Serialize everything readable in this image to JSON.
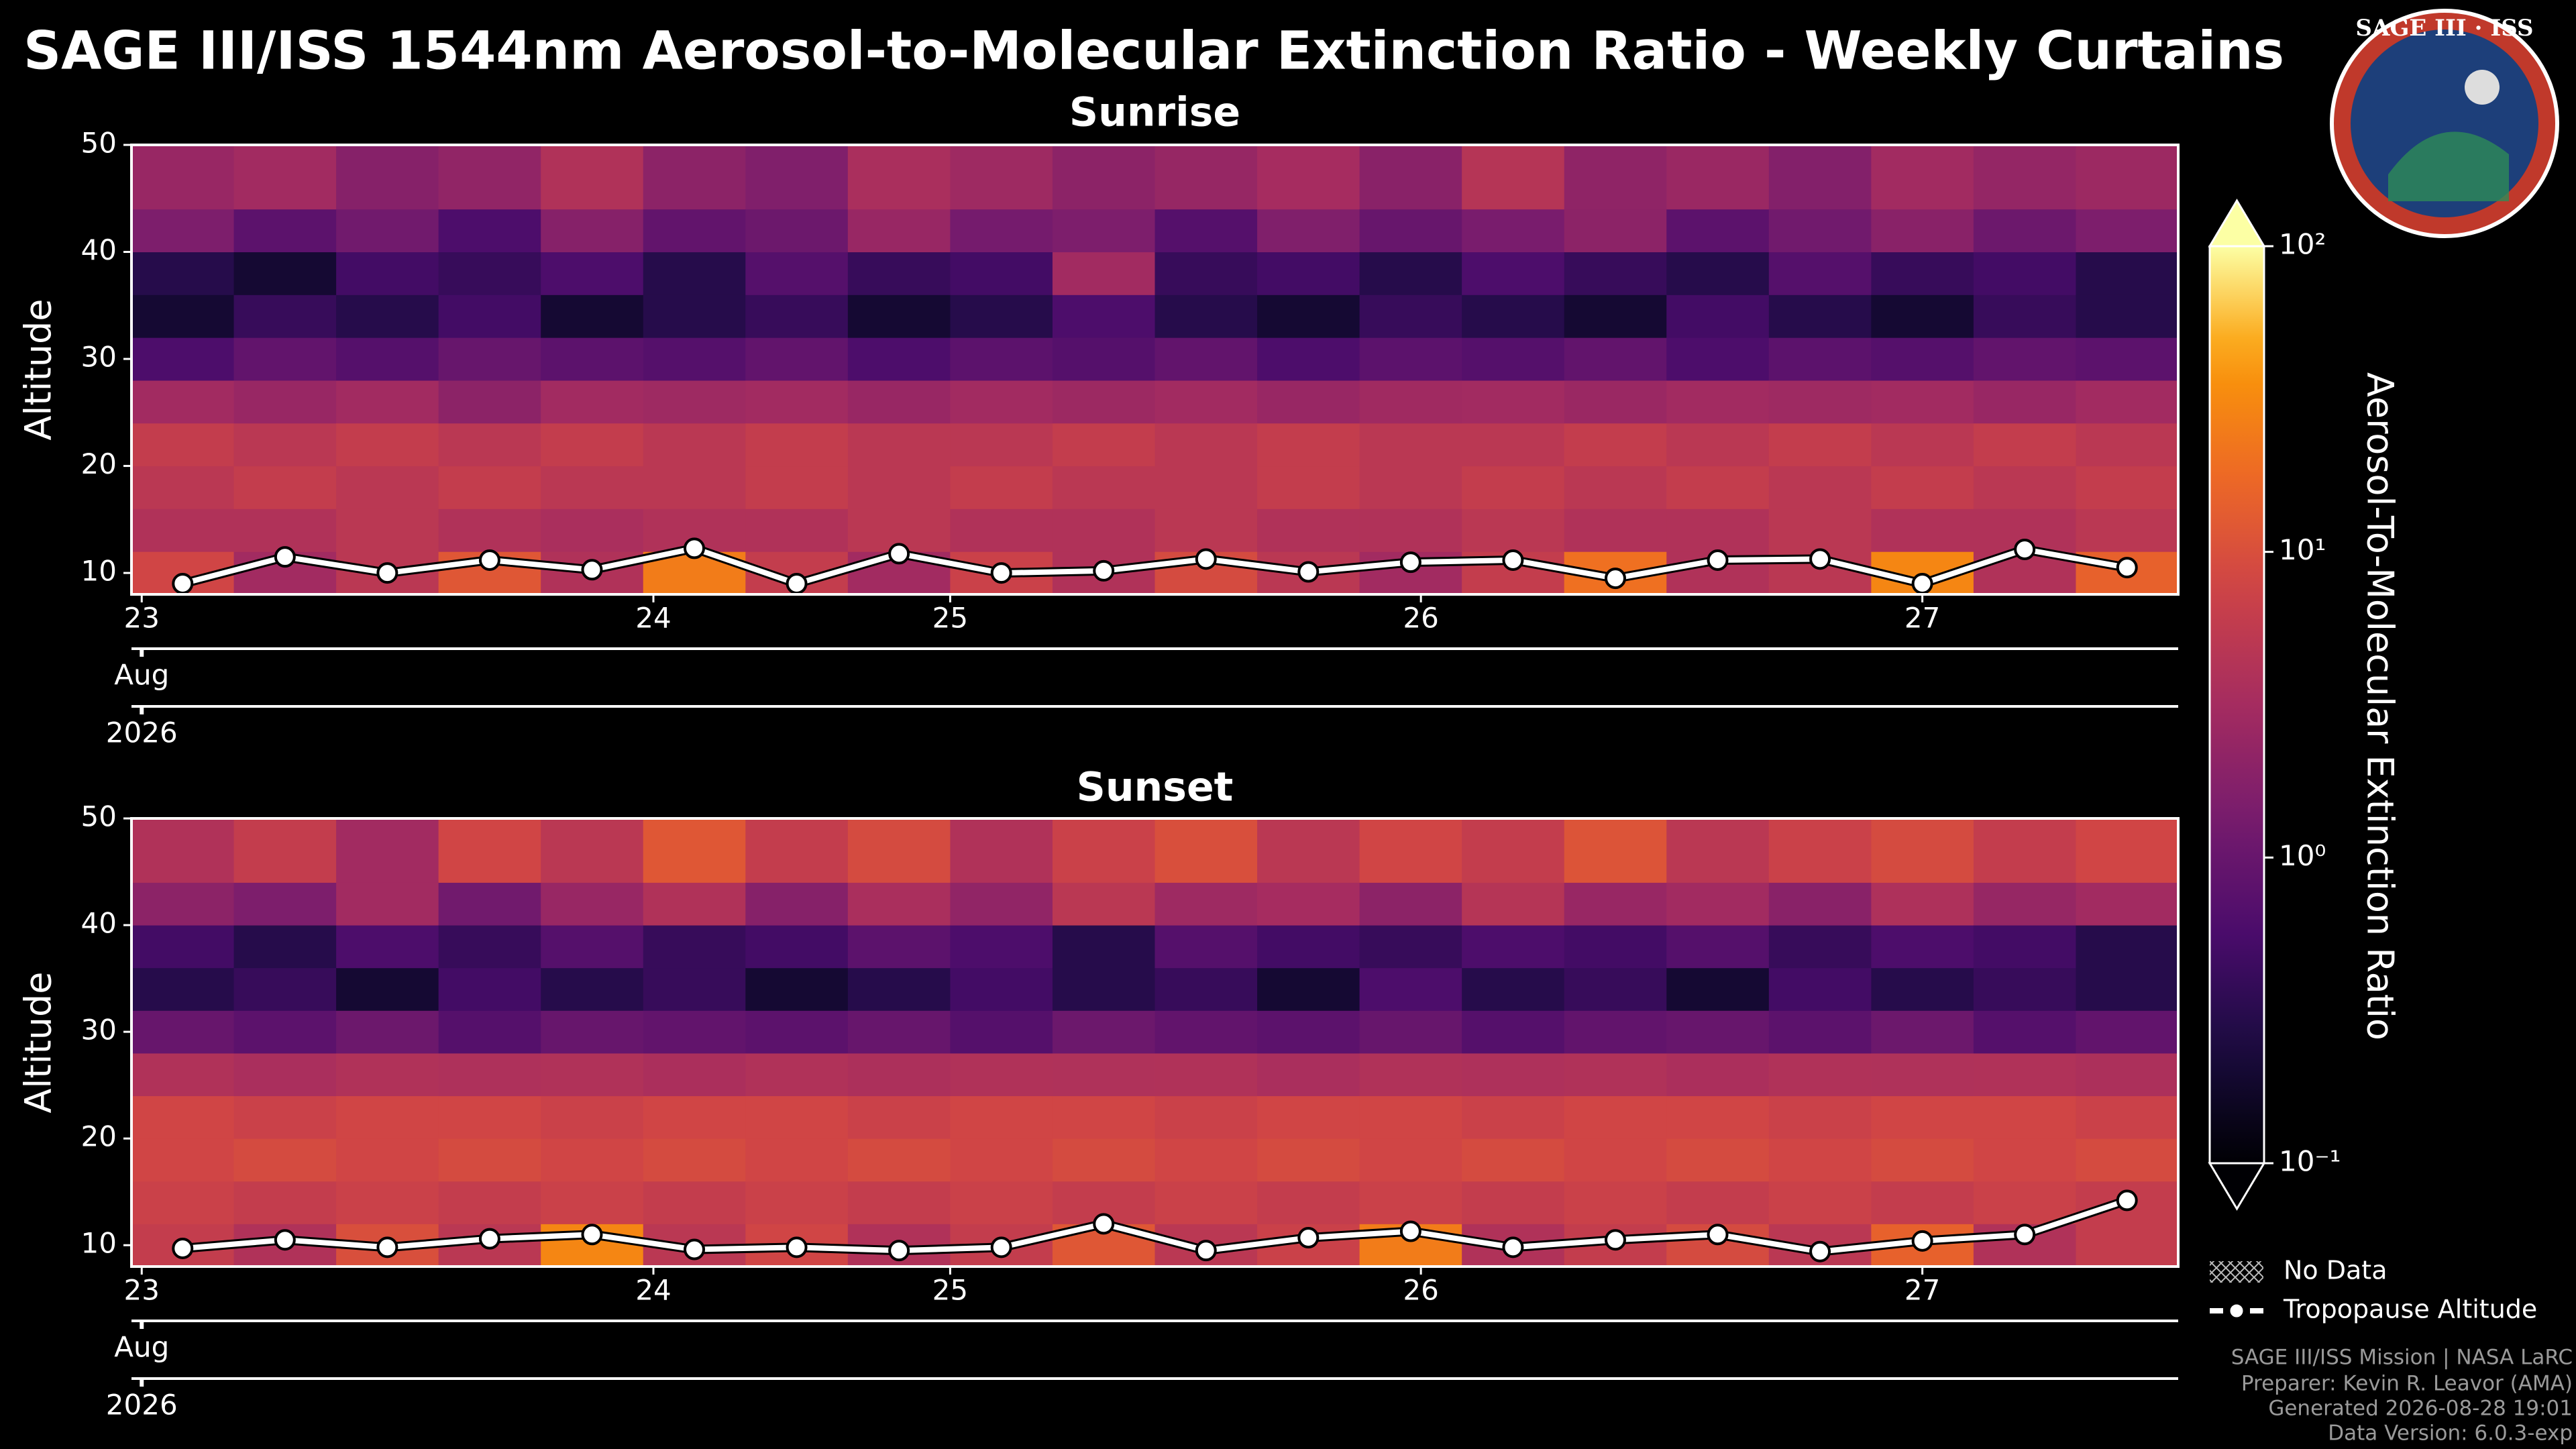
{
  "title": "SAGE III/ISS 1544nm Aerosol-to-Molecular Extinction Ratio - Weekly Curtains",
  "logo": {
    "text": "SAGE III · ISS"
  },
  "chart_data": [
    {
      "type": "heatmap",
      "title": "Sunrise",
      "ylabel": "Altitude",
      "xbins": [
        0,
        1,
        2,
        3,
        4,
        5,
        6,
        7,
        8,
        9,
        10,
        11,
        12,
        13,
        14,
        15,
        16,
        17,
        18,
        19,
        20
      ],
      "ybins": [
        8,
        12,
        16,
        20,
        24,
        28,
        32,
        36,
        40,
        44,
        50
      ],
      "values": [
        [
          8,
          4,
          5,
          6,
          3,
          0.6,
          0.2,
          0.3,
          1.5,
          2.5
        ],
        [
          3,
          4,
          6,
          5,
          2.5,
          0.9,
          0.4,
          0.2,
          0.8,
          3
        ],
        [
          5,
          5,
          5,
          6,
          3,
          0.7,
          0.3,
          0.5,
          1.2,
          1.8
        ],
        [
          12,
          4,
          6,
          5,
          2,
          1,
          0.5,
          0.4,
          0.6,
          2.2
        ],
        [
          4,
          3.5,
          5,
          6,
          3,
          0.8,
          0.2,
          0.6,
          1.8,
          4
        ],
        [
          25,
          4,
          5,
          5,
          2.8,
          0.7,
          0.3,
          0.3,
          0.9,
          2
        ],
        [
          6,
          4,
          6,
          6,
          3,
          0.9,
          0.4,
          0.7,
          1.1,
          1.6
        ],
        [
          3,
          5,
          5,
          5,
          2.5,
          0.6,
          0.2,
          0.4,
          2.5,
          3.5
        ],
        [
          7,
          4,
          6,
          5,
          3,
          0.8,
          0.3,
          0.5,
          1.3,
          2.8
        ],
        [
          4,
          4,
          5,
          6,
          2.7,
          0.7,
          0.6,
          3,
          1.5,
          2
        ],
        [
          9,
          5,
          5,
          5,
          3,
          0.9,
          0.3,
          0.4,
          0.7,
          2.4
        ],
        [
          5,
          4,
          6,
          6,
          2.5,
          0.6,
          0.2,
          0.5,
          1.6,
          3.2
        ],
        [
          3,
          4,
          5,
          5,
          2.9,
          0.8,
          0.4,
          0.3,
          1,
          1.9
        ],
        [
          6,
          5,
          6,
          5,
          3,
          0.7,
          0.3,
          0.6,
          1.4,
          4.5
        ],
        [
          20,
          4,
          5,
          6,
          2.6,
          0.9,
          0.2,
          0.4,
          2,
          2.1
        ],
        [
          4,
          4,
          6,
          5,
          3,
          0.6,
          0.5,
          0.3,
          0.8,
          2.6
        ],
        [
          5,
          5,
          5,
          6,
          2.8,
          0.8,
          0.3,
          0.7,
          1.2,
          1.7
        ],
        [
          30,
          4,
          6,
          5,
          3,
          0.7,
          0.2,
          0.4,
          1.9,
          3
        ],
        [
          4,
          4,
          5,
          6,
          2.5,
          0.9,
          0.4,
          0.5,
          1.1,
          2.3
        ],
        [
          15,
          5,
          6,
          5,
          3,
          0.8,
          0.3,
          0.3,
          1.5,
          2.7
        ]
      ],
      "tropopause": [
        9,
        11.5,
        10,
        11.2,
        10.3,
        12.3,
        9,
        11.8,
        10,
        10.2,
        11.3,
        10.1,
        11,
        11.2,
        9.5,
        11.2,
        11.3,
        9,
        12.2,
        10.5
      ],
      "xlim": [
        0,
        20
      ],
      "ylim": [
        8,
        50
      ],
      "yticks": [
        10,
        20,
        30,
        40,
        50
      ],
      "xticks": [
        {
          "value": 0.1,
          "label": "23"
        },
        {
          "value": 5.1,
          "label": "24"
        },
        {
          "value": 8,
          "label": "25"
        },
        {
          "value": 12.6,
          "label": "26"
        },
        {
          "value": 17.5,
          "label": "27"
        }
      ],
      "date_labels": [
        "Aug",
        "2026"
      ]
    },
    {
      "type": "heatmap",
      "title": "Sunset",
      "ylabel": "Altitude",
      "xbins": [
        0,
        1,
        2,
        3,
        4,
        5,
        6,
        7,
        8,
        9,
        10,
        11,
        12,
        13,
        14,
        15,
        16,
        17,
        18,
        19,
        20
      ],
      "ybins": [
        8,
        12,
        16,
        20,
        24,
        28,
        32,
        36,
        40,
        44,
        50
      ],
      "values": [
        [
          6,
          7,
          8,
          8,
          4,
          1,
          0.3,
          0.5,
          2,
          4
        ],
        [
          4,
          6,
          9,
          7,
          3.5,
          0.8,
          0.4,
          0.3,
          1.5,
          6
        ],
        [
          10,
          7,
          8,
          8,
          4,
          1.1,
          0.2,
          0.6,
          3,
          3
        ],
        [
          5,
          6,
          9,
          8,
          3.8,
          0.7,
          0.5,
          0.4,
          1.2,
          8
        ],
        [
          30,
          7,
          8,
          7,
          4,
          1,
          0.3,
          0.7,
          2.5,
          5
        ],
        [
          5,
          6,
          9,
          8,
          3.6,
          0.9,
          0.4,
          0.4,
          4,
          12
        ],
        [
          8,
          7,
          8,
          8,
          4,
          0.8,
          0.2,
          0.5,
          1.8,
          6
        ],
        [
          4,
          6,
          9,
          7,
          3.7,
          1,
          0.3,
          0.8,
          3.5,
          9
        ],
        [
          6,
          7,
          8,
          8,
          4,
          0.7,
          0.5,
          0.6,
          2.2,
          4
        ],
        [
          12,
          6,
          9,
          8,
          3.9,
          1.1,
          0.3,
          0.3,
          5,
          7
        ],
        [
          5,
          7,
          8,
          7,
          4,
          0.9,
          0.4,
          0.7,
          2.8,
          10
        ],
        [
          7,
          6,
          9,
          8,
          3.5,
          0.8,
          0.2,
          0.5,
          3.2,
          5
        ],
        [
          25,
          7,
          8,
          8,
          4,
          1,
          0.6,
          0.4,
          2,
          8
        ],
        [
          4,
          6,
          9,
          7,
          3.8,
          0.7,
          0.3,
          0.6,
          4.5,
          6
        ],
        [
          6,
          7,
          8,
          8,
          4,
          0.9,
          0.4,
          0.5,
          2.5,
          11
        ],
        [
          9,
          6,
          9,
          8,
          3.6,
          1,
          0.2,
          0.7,
          3,
          5
        ],
        [
          5,
          7,
          8,
          7,
          4,
          0.8,
          0.5,
          0.4,
          1.9,
          7
        ],
        [
          15,
          6,
          9,
          8,
          3.9,
          1.1,
          0.3,
          0.6,
          3.8,
          9
        ],
        [
          4,
          7,
          8,
          8,
          4,
          0.7,
          0.4,
          0.5,
          2.4,
          6
        ],
        [
          6,
          6,
          9,
          7,
          3.7,
          0.9,
          0.3,
          0.3,
          3,
          8
        ]
      ],
      "tropopause": [
        9.7,
        10.5,
        9.8,
        10.6,
        11,
        9.6,
        9.8,
        9.5,
        9.8,
        12,
        9.5,
        10.7,
        11.3,
        9.8,
        10.5,
        11,
        9.4,
        10.4,
        11,
        14.2
      ],
      "xlim": [
        0,
        20
      ],
      "ylim": [
        8,
        50
      ],
      "yticks": [
        10,
        20,
        30,
        40,
        50
      ],
      "xticks": [
        {
          "value": 0.1,
          "label": "23"
        },
        {
          "value": 5.1,
          "label": "24"
        },
        {
          "value": 8,
          "label": "25"
        },
        {
          "value": 12.6,
          "label": "26"
        },
        {
          "value": 17.5,
          "label": "27"
        }
      ],
      "date_labels": [
        "Aug",
        "2026"
      ]
    }
  ],
  "colorbar": {
    "label": "Aerosol-To-Molecular Extinction Ratio",
    "colormap": "inferno",
    "log": true,
    "lim": [
      0.1,
      100
    ],
    "ticks": [
      {
        "value": 0.1,
        "label": "10⁻¹"
      },
      {
        "value": 1,
        "label": "10⁰"
      },
      {
        "value": 10,
        "label": "10¹"
      },
      {
        "value": 100,
        "label": "10²"
      }
    ]
  },
  "legend": [
    "No Data",
    "Tropopause Altitude"
  ],
  "footer": [
    "SAGE III/ISS Mission | NASA LaRC",
    "Preparer: Kevin R. Leavor (AMA)",
    "Generated 2026-08-28 19:01",
    "Data Version: 6.0.3-exp"
  ]
}
